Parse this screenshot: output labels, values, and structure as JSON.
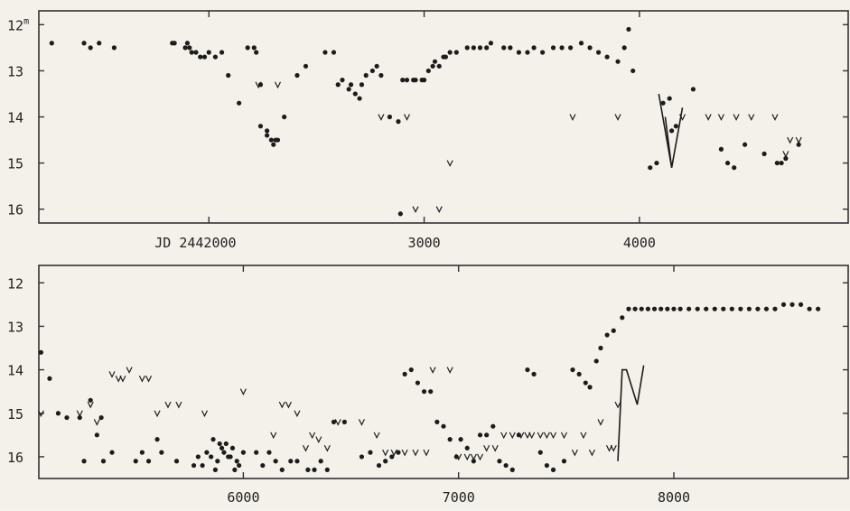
{
  "chart_data": [
    {
      "type": "scatter",
      "xlabel": "",
      "ylabel": "",
      "x_tick_labels": [
        "JD 2442000",
        "3000",
        "4000"
      ],
      "x_tick_values": [
        2000,
        3000,
        4000
      ],
      "y_tick_labels": [
        "12m",
        "13",
        "14",
        "15",
        "16"
      ],
      "y_tick_values": [
        12,
        13,
        14,
        15,
        16
      ],
      "xlim": [
        1210,
        4970
      ],
      "ylim": [
        16.3,
        11.7
      ],
      "y_inverted": true,
      "series": [
        {
          "marker": "dot",
          "x": [
            1270,
            1420,
            1450,
            1490,
            1560,
            1830,
            1840,
            1890,
            1900,
            1910,
            1920,
            1940,
            1960,
            1980,
            2000,
            2030,
            2060,
            2090,
            2140,
            2180,
            2210,
            2220,
            2240,
            2270,
            2240,
            2270,
            2290,
            2300,
            2310,
            2320,
            2350,
            2410,
            2450,
            2540,
            2580,
            2600,
            2620,
            2650,
            2660,
            2680,
            2700,
            2710,
            2730,
            2760,
            2780,
            2800,
            2840,
            2880,
            2890,
            2900,
            2920,
            2950,
            2960,
            2990,
            3000,
            3020,
            3040,
            3050,
            3070,
            3090,
            3100,
            3120,
            3150,
            3200,
            3230,
            3260,
            3290,
            3310,
            3370,
            3400,
            3440,
            3480,
            3510,
            3550,
            3600,
            3640,
            3680,
            3730,
            3770,
            3810,
            3850,
            3900,
            3930,
            3950,
            3970,
            4050,
            4080,
            4110,
            4140,
            4150,
            4170,
            4250,
            4380,
            4410,
            4440,
            4490,
            4580,
            4640,
            4660,
            4680,
            4740
          ],
          "y": [
            12.4,
            12.4,
            12.5,
            12.4,
            12.5,
            12.4,
            12.4,
            12.5,
            12.4,
            12.5,
            12.6,
            12.6,
            12.7,
            12.7,
            12.6,
            12.7,
            12.6,
            13.1,
            13.7,
            12.5,
            12.5,
            12.6,
            13.3,
            14.3,
            14.2,
            14.4,
            14.5,
            14.6,
            14.5,
            14.5,
            14.0,
            13.1,
            12.9,
            12.6,
            12.6,
            13.3,
            13.2,
            13.4,
            13.3,
            13.5,
            13.6,
            13.3,
            13.1,
            13.0,
            12.9,
            13.1,
            14.0,
            14.1,
            16.1,
            13.2,
            13.2,
            13.2,
            13.2,
            13.2,
            13.2,
            13.0,
            12.9,
            12.8,
            12.9,
            12.7,
            12.7,
            12.6,
            12.6,
            12.5,
            12.5,
            12.5,
            12.5,
            12.4,
            12.5,
            12.5,
            12.6,
            12.6,
            12.5,
            12.6,
            12.5,
            12.5,
            12.5,
            12.4,
            12.5,
            12.6,
            12.7,
            12.8,
            12.5,
            12.1,
            13.0,
            15.1,
            15.0,
            13.7,
            13.6,
            14.3,
            14.2,
            13.4,
            14.7,
            15.0,
            15.1,
            14.6,
            14.8,
            15.0,
            15.0,
            14.9,
            14.6
          ]
        },
        {
          "marker": "upper-limit",
          "x": [
            2230,
            2320,
            2800,
            2920,
            2960,
            3070,
            3120,
            3690,
            3900,
            4200,
            4320,
            4380,
            4450,
            4520,
            4630,
            4680,
            4700,
            4740
          ],
          "y": [
            13.3,
            13.3,
            14.0,
            14.0,
            16.0,
            16.0,
            15.0,
            14.0,
            14.0,
            14.0,
            14.0,
            14.0,
            14.0,
            14.0,
            14.0,
            14.8,
            14.5,
            14.5
          ]
        }
      ]
    },
    {
      "type": "scatter",
      "xlabel": "",
      "ylabel": "",
      "x_tick_labels": [
        "6000",
        "7000",
        "8000"
      ],
      "x_tick_values": [
        6000,
        7000,
        8000
      ],
      "y_tick_labels": [
        "12",
        "13",
        "14",
        "15",
        "16"
      ],
      "y_tick_values": [
        12,
        13,
        14,
        15,
        16
      ],
      "xlim": [
        5050,
        8810
      ],
      "ylim": [
        16.5,
        11.6
      ],
      "y_inverted": true,
      "series": [
        {
          "marker": "dot",
          "x": [
            5060,
            5100,
            5140,
            5180,
            5240,
            5260,
            5290,
            5320,
            5340,
            5350,
            5390,
            5500,
            5530,
            5560,
            5600,
            5620,
            5690,
            5770,
            5790,
            5810,
            5830,
            5850,
            5870,
            5880,
            5900,
            5920,
            5940,
            5960,
            5980,
            5860,
            5890,
            5910,
            5930,
            5950,
            5970,
            6000,
            6060,
            6090,
            6120,
            6150,
            6180,
            6220,
            6250,
            6300,
            6330,
            6360,
            6390,
            6420,
            6470,
            6550,
            6590,
            6630,
            6660,
            6690,
            6720,
            6750,
            6780,
            6810,
            6840,
            6870,
            6900,
            6930,
            6960,
            6990,
            7010,
            7040,
            7070,
            7100,
            7130,
            7160,
            7190,
            7220,
            7250,
            7280,
            7320,
            7350,
            7380,
            7410,
            7440,
            7490,
            7530,
            7560,
            7590,
            7610,
            7640,
            7660,
            7690,
            7720,
            7760,
            7790,
            7820,
            7850,
            7880,
            7910,
            7940,
            7970,
            8000,
            8030,
            8070,
            8110,
            8150,
            8190,
            8230,
            8270,
            8310,
            8350,
            8390,
            8430,
            8470,
            8510,
            8550,
            8590,
            8630,
            8670
          ],
          "y": [
            13.6,
            14.2,
            15.0,
            15.1,
            15.1,
            16.1,
            14.7,
            15.5,
            15.1,
            16.1,
            15.9,
            16.1,
            15.9,
            16.1,
            15.6,
            15.9,
            16.1,
            16.2,
            16.0,
            16.2,
            15.9,
            16.0,
            16.3,
            16.1,
            15.8,
            15.7,
            16.0,
            16.3,
            16.2,
            15.6,
            15.7,
            15.9,
            16.0,
            15.8,
            16.1,
            15.9,
            15.9,
            16.2,
            15.9,
            16.1,
            16.3,
            16.1,
            16.1,
            16.3,
            16.3,
            16.1,
            16.3,
            15.2,
            15.2,
            16.0,
            15.9,
            16.2,
            16.1,
            16.0,
            15.9,
            14.1,
            14.0,
            14.3,
            14.5,
            14.5,
            15.2,
            15.3,
            15.6,
            16.0,
            15.6,
            15.8,
            16.1,
            15.5,
            15.5,
            15.3,
            16.1,
            16.2,
            16.3,
            15.5,
            14.0,
            14.1,
            15.9,
            16.2,
            16.3,
            16.1,
            14.0,
            14.1,
            14.3,
            14.4,
            13.8,
            13.5,
            13.2,
            13.1,
            12.8,
            12.6,
            12.6,
            12.6,
            12.6,
            12.6,
            12.6,
            12.6,
            12.6,
            12.6,
            12.6,
            12.6,
            12.6,
            12.6,
            12.6,
            12.6,
            12.6,
            12.6,
            12.6,
            12.6,
            12.6,
            12.5,
            12.5,
            12.5,
            12.6,
            12.6
          ],
          "_": "[]"
        },
        {
          "marker": "upper-limit",
          "x": [
            5060,
            5240,
            5290,
            5320,
            5390,
            5420,
            5440,
            5470,
            5530,
            5560,
            5600,
            5650,
            5700,
            5820,
            6000,
            6140,
            6180,
            6210,
            6250,
            6290,
            6320,
            6350,
            6390,
            6440,
            6550,
            6620,
            6660,
            6700,
            6750,
            6800,
            6850,
            6880,
            6960,
            7000,
            7040,
            7070,
            7100,
            7130,
            7170,
            7210,
            7250,
            7290,
            7320,
            7340,
            7380,
            7410,
            7440,
            7490,
            7540,
            7580,
            7620,
            7660,
            7700,
            7720,
            7740
          ],
          "y": [
            15.0,
            15.0,
            14.8,
            15.2,
            14.1,
            14.2,
            14.2,
            14.0,
            14.2,
            14.2,
            15.0,
            14.8,
            14.8,
            15.0,
            14.5,
            15.5,
            14.8,
            14.8,
            15.0,
            15.8,
            15.5,
            15.6,
            15.8,
            15.2,
            15.2,
            15.5,
            15.9,
            15.9,
            15.9,
            15.9,
            15.9,
            14.0,
            14.0,
            16.0,
            16.0,
            16.0,
            16.0,
            15.8,
            15.8,
            15.5,
            15.5,
            15.5,
            15.5,
            15.5,
            15.5,
            15.5,
            15.5,
            15.5,
            15.9,
            15.5,
            15.9,
            15.2,
            15.8,
            15.8,
            14.8
          ],
          "_": "[]"
        }
      ]
    }
  ]
}
